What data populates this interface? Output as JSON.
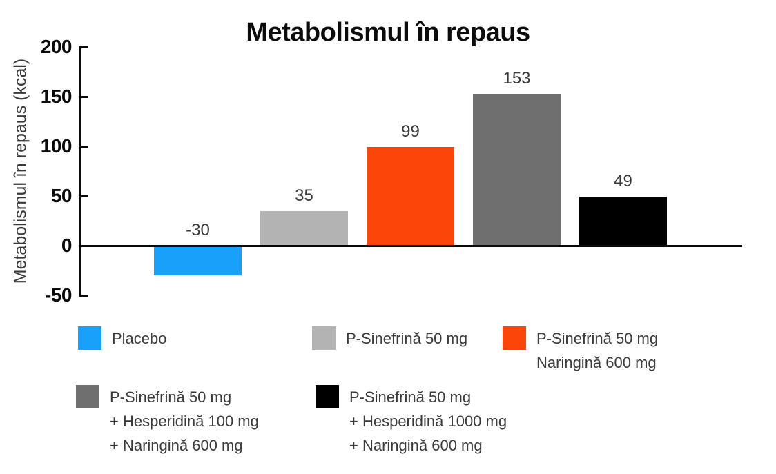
{
  "chart_data": {
    "type": "bar",
    "title": "Metabolismul în repaus",
    "ylabel": "Metabolismul în repaus (kcal)",
    "ylim": [
      -50,
      200
    ],
    "yticks": [
      200,
      150,
      100,
      50,
      0,
      -50
    ],
    "grid": false,
    "legend_position": "bottom",
    "categories": [
      "Placebo",
      "P-Sinefrină 50 mg",
      "P-Sinefrină 50 mg Naringină 600 mg",
      "P-Sinefrină 50 mg + Hesperidină 100 mg + Naringină 600 mg",
      "P-Sinefrină 50 mg + Hesperidină 1000 mg + Naringină 600 mg"
    ],
    "values": [
      -30,
      35,
      99,
      153,
      49
    ],
    "bar_colors": [
      "#19A0FA",
      "#B3B3B3",
      "#FC4508",
      "#6F6F6F",
      "#000000"
    ],
    "legend_items": [
      {
        "label_lines": [
          "Placebo"
        ],
        "color": "#19A0FA"
      },
      {
        "label_lines": [
          "P-Sinefrină 50 mg"
        ],
        "color": "#B3B3B3"
      },
      {
        "label_lines": [
          "P-Sinefrină 50 mg",
          "Naringină 600 mg"
        ],
        "color": "#FC4508"
      },
      {
        "label_lines": [
          "P-Sinefrină 50 mg",
          "+ Hesperidină 100 mg",
          "+ Naringină 600 mg"
        ],
        "color": "#6F6F6F"
      },
      {
        "label_lines": [
          "P-Sinefrină 50 mg",
          "+ Hesperidină 1000 mg",
          "+ Naringină 600 mg"
        ],
        "color": "#000000"
      }
    ],
    "axis_color": "#0a0a0a"
  }
}
